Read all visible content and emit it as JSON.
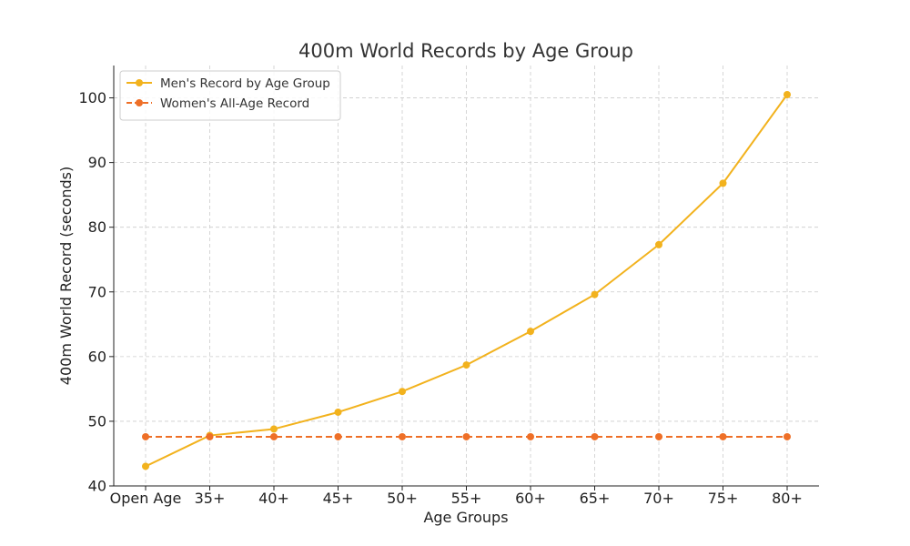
{
  "chart_data": {
    "type": "line",
    "title": "400m World Records by Age Group",
    "xlabel": "Age Groups",
    "ylabel": "400m World Record (seconds)",
    "categories": [
      "Open Age",
      "35+",
      "40+",
      "45+",
      "50+",
      "55+",
      "60+",
      "65+",
      "70+",
      "75+",
      "80+"
    ],
    "ylim": [
      40,
      105
    ],
    "yticks": [
      40,
      50,
      60,
      70,
      80,
      90,
      100
    ],
    "grid": true,
    "legend_position": "top-left",
    "series": [
      {
        "name": "Men's Record by Age Group",
        "values": [
          43.03,
          47.8,
          48.8,
          51.4,
          54.6,
          58.7,
          63.9,
          69.6,
          77.3,
          86.8,
          100.5
        ],
        "color": "#f2b21d",
        "style": "solid",
        "marker": "circle"
      },
      {
        "name": "Women's All-Age Record",
        "values": [
          47.6,
          47.6,
          47.6,
          47.6,
          47.6,
          47.6,
          47.6,
          47.6,
          47.6,
          47.6,
          47.6
        ],
        "color": "#ee6f27",
        "style": "dashed",
        "marker": "circle"
      }
    ]
  }
}
